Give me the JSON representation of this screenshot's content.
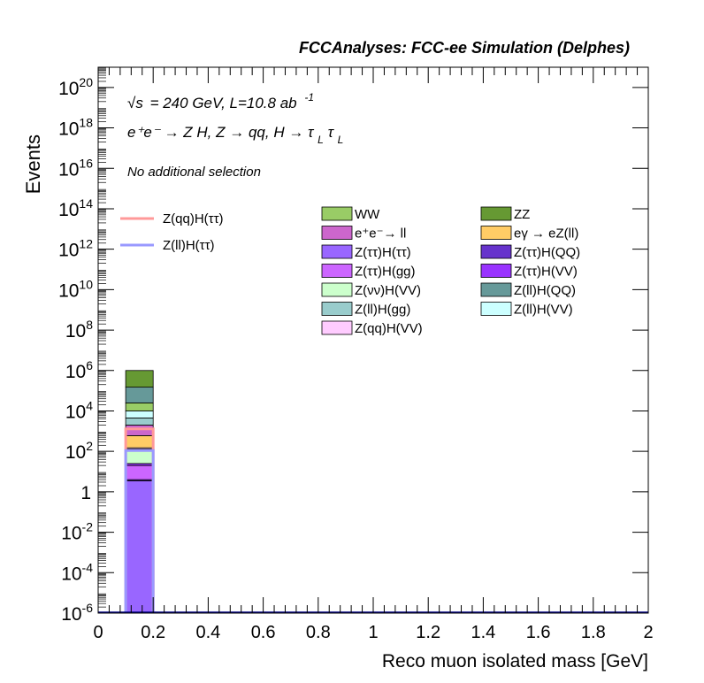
{
  "header": {
    "title": "FCCAnalyses: FCC-ee Simulation (Delphes)"
  },
  "annotations": {
    "sqrt_s_symbol": "√s",
    "energy_lumi_text": "= 240 GeV, L=10.8 ab",
    "lumi_exponent": "-1",
    "process_text": "e⁺e⁻ → Z H, Z → qq, H → τ",
    "tau_subscript": "L",
    "tau2": "τ",
    "tau2_subscript": "L",
    "selection": "No additional selection"
  },
  "chart_data": {
    "type": "bar",
    "title": "",
    "xlabel": "Reco muon isolated mass [GeV]",
    "ylabel": "Events",
    "xlim": [
      0,
      2
    ],
    "ylim": [
      1e-06,
      1e+21
    ],
    "y_scale": "log",
    "x_ticks": [
      "0",
      "0.2",
      "0.4",
      "0.6",
      "0.8",
      "1",
      "1.2",
      "1.4",
      "1.6",
      "1.8",
      "2"
    ],
    "y_ticks": [
      {
        "base": "10",
        "exp": "-6"
      },
      {
        "base": "10",
        "exp": "-4"
      },
      {
        "base": "10",
        "exp": "-2"
      },
      {
        "base": "1",
        "exp": ""
      },
      {
        "base": "10",
        "exp": "2"
      },
      {
        "base": "10",
        "exp": "4"
      },
      {
        "base": "10",
        "exp": "6"
      },
      {
        "base": "10",
        "exp": "8"
      },
      {
        "base": "10",
        "exp": "10"
      },
      {
        "base": "10",
        "exp": "12"
      },
      {
        "base": "10",
        "exp": "14"
      },
      {
        "base": "10",
        "exp": "16"
      },
      {
        "base": "10",
        "exp": "18"
      },
      {
        "base": "10",
        "exp": "20"
      }
    ],
    "bin": [
      0.1,
      0.2
    ],
    "stacked_background": [
      {
        "name": "Z(ττ)H(ττ)",
        "color": "#9966ff",
        "top": 3.5
      },
      {
        "name": "Z(ττ)H(QQ)",
        "color": "#6633cc",
        "top": 4.0
      },
      {
        "name": "Z(ττ)H(gg)",
        "color": "#cc66ff",
        "top": 20
      },
      {
        "name": "Z(ττ)H(VV)",
        "color": "#9933ff",
        "top": 25
      },
      {
        "name": "Z(νν)H(VV)",
        "color": "#ccffcc",
        "top": 130
      },
      {
        "name": "Z(qq)H(VV)",
        "color": "#ffccff",
        "top": 150
      },
      {
        "name": "eγ → eZ(ll)",
        "color": "#ffcc66",
        "top": 600
      },
      {
        "name": "e⁺e⁻→ ll",
        "color": "#cc66cc",
        "top": 2000
      },
      {
        "name": "Z(ll)H(gg)",
        "color": "#99cccc",
        "top": 4500
      },
      {
        "name": "Z(ll)H(VV)",
        "color": "#ccffff",
        "top": 10000
      },
      {
        "name": "WW",
        "color": "#99cc66",
        "top": 25000
      },
      {
        "name": "Z(ll)H(QQ)",
        "color": "#669999",
        "top": 150000
      },
      {
        "name": "ZZ",
        "color": "#669933",
        "top": 1000000
      }
    ],
    "signals": [
      {
        "name": "Z(qq)H(ττ)",
        "color": "#ff9999",
        "value": 1300
      },
      {
        "name": "Z(ll)H(ττ)",
        "color": "#9999ff",
        "value": 110
      }
    ],
    "legend_signals": [
      "Z(qq)H(ττ)",
      "Z(ll)H(ττ)"
    ],
    "legend_background": [
      {
        "name": "WW",
        "color": "#99cc66"
      },
      {
        "name": "ZZ",
        "color": "#669933"
      },
      {
        "name": "e⁺e⁻→ ll",
        "color": "#cc66cc"
      },
      {
        "name": "eγ → eZ(ll)",
        "color": "#ffcc66"
      },
      {
        "name": "Z(ττ)H(ττ)",
        "color": "#9966ff"
      },
      {
        "name": "Z(ττ)H(QQ)",
        "color": "#6633cc"
      },
      {
        "name": "Z(ττ)H(gg)",
        "color": "#cc66ff"
      },
      {
        "name": "Z(ττ)H(VV)",
        "color": "#9933ff"
      },
      {
        "name": "Z(νν)H(VV)",
        "color": "#ccffcc"
      },
      {
        "name": "Z(ll)H(QQ)",
        "color": "#669999"
      },
      {
        "name": "Z(ll)H(gg)",
        "color": "#99cccc"
      },
      {
        "name": "Z(ll)H(VV)",
        "color": "#ccffff"
      },
      {
        "name": "Z(qq)H(VV)",
        "color": "#ffccff"
      }
    ],
    "legend_placement": "top-right",
    "grid": false
  }
}
